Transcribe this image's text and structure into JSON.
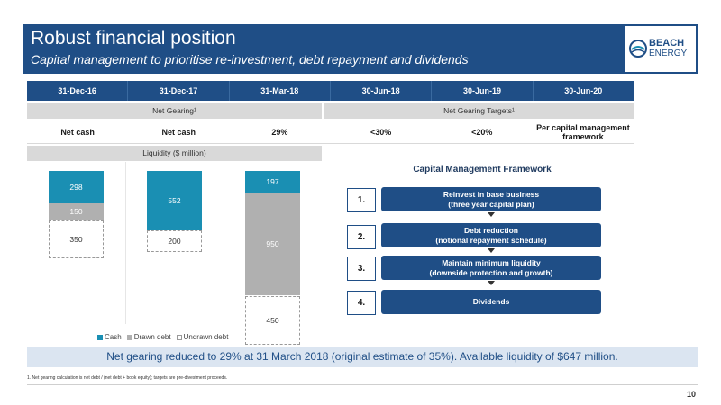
{
  "header": {
    "title": "Robust financial position",
    "subtitle": "Capital management to prioritise re-investment, debt repayment and dividends"
  },
  "logo": {
    "line1": "BEACH",
    "line2": "ENERGY",
    "icon": "beach-energy-logo-icon"
  },
  "dates": [
    "31-Dec-16",
    "31-Dec-17",
    "31-Mar-18",
    "30-Jun-18",
    "30-Jun-19",
    "30-Jun-20"
  ],
  "labels": {
    "net_gearing": "Net Gearing¹",
    "net_gearing_targets": "Net Gearing Targets¹",
    "liquidity": "Liquidity ($ million)"
  },
  "gearing_values": [
    "Net cash",
    "Net cash",
    "29%",
    "<30%",
    "<20%",
    "Per capital management framework"
  ],
  "chart_data": {
    "type": "bar",
    "stacked": true,
    "categories": [
      "31-Dec-16",
      "31-Dec-17",
      "31-Mar-18"
    ],
    "series": [
      {
        "name": "Cash",
        "values": [
          298,
          552,
          197
        ],
        "color": "#1a8fb3"
      },
      {
        "name": "Drawn debt",
        "values": [
          150,
          0,
          950
        ],
        "color": "#b0b0b0"
      },
      {
        "name": "Undrawn debt",
        "values": [
          350,
          200,
          450
        ],
        "color": "#ffffff"
      }
    ],
    "labels": {
      "cash": [
        "298",
        "552",
        "197"
      ],
      "drawn": [
        "150",
        "",
        "950"
      ],
      "undrawn": [
        "350",
        "200",
        "450"
      ]
    }
  },
  "legend": [
    "Cash",
    "Drawn debt",
    "Undrawn debt"
  ],
  "cmf": {
    "title": "Capital Management Framework",
    "steps": [
      {
        "num": "1.",
        "line1": "Reinvest in base business",
        "line2": "(three year capital plan)"
      },
      {
        "num": "2.",
        "line1": "Debt reduction",
        "line2": "(notional repayment schedule)"
      },
      {
        "num": "3.",
        "line1": "Maintain minimum liquidity",
        "line2": "(downside protection and growth)"
      },
      {
        "num": "4.",
        "line1": "Dividends",
        "line2": ""
      }
    ]
  },
  "banner": "Net gearing reduced to 29% at 31 March 2018 (original estimate of 35%). Available liquidity of $647 million.",
  "footnote": "1.      Net gearing calculation is net debt / (net debt + book equity); targets are pre-divestment proceeds.",
  "page_number": "10"
}
